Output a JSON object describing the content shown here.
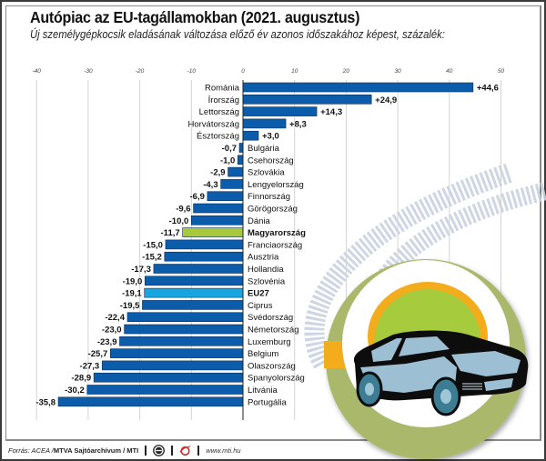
{
  "header": {
    "title": "Autópiac az EU-tagállamokban (2021. augusztus)",
    "subtitle": "Új személygépkocsik eladásának változása előző év azonos időszakához képest, százalék:"
  },
  "footer": {
    "source_prefix": "Forrás: ACEA / ",
    "source_bold": "MTVA Sajtóarchívum / MTI",
    "url": "www.mti.hu",
    "logo1_text": "MTVA"
  },
  "colors": {
    "bar": "#0b5cab",
    "bar_outline": "#0a2f5c",
    "highlight_hungary": "#a9c93c",
    "highlight_eu27": "#19a6de",
    "grid": "#d4d4d4",
    "tire_track": "#c9d2e2",
    "badge_outer": "#a9b86b",
    "badge_sun": "#a6cb3d",
    "badge_orange": "#f3ad1c",
    "car_body": "#0d0d0d",
    "car_glass": "#9dbfd3",
    "car_wheel": "#3d7d93"
  },
  "chart_data": {
    "type": "bar",
    "orientation": "horizontal",
    "title": "Autópiac az EU-tagállamokban (2021. augusztus)",
    "subtitle": "Új személygépkocsik eladásának változása előző év azonos időszakához képest, százalék:",
    "xlabel": "",
    "ylabel": "",
    "xlim": [
      -40,
      50
    ],
    "xticks": [
      -40,
      -30,
      -20,
      -10,
      0,
      10,
      20,
      30,
      40,
      50
    ],
    "grid": true,
    "categories": [
      "Románia",
      "Írország",
      "Lettország",
      "Horvátország",
      "Észtország",
      "Bulgária",
      "Csehország",
      "Szlovákia",
      "Lengyelország",
      "Finnország",
      "Görögország",
      "Dánia",
      "Magyarország",
      "Franciaország",
      "Ausztria",
      "Hollandia",
      "Szlovénia",
      "EU27",
      "Ciprus",
      "Svédország",
      "Németország",
      "Luxemburg",
      "Belgium",
      "Olaszország",
      "Spanyolország",
      "Litvánia",
      "Portugália"
    ],
    "values": [
      44.6,
      24.9,
      14.3,
      8.3,
      3.0,
      -0.7,
      -1.0,
      -2.9,
      -4.3,
      -6.9,
      -9.6,
      -10.0,
      -11.7,
      -15.0,
      -15.2,
      -17.3,
      -19.0,
      -19.1,
      -19.5,
      -22.4,
      -23.0,
      -23.9,
      -25.7,
      -27.3,
      -28.9,
      -30.2,
      -35.8
    ],
    "value_labels": [
      "+44,6",
      "+24,9",
      "+14,3",
      "+8,3",
      "+3,0",
      "-0,7",
      "-1,0",
      "-2,9",
      "-4,3",
      "-6,9",
      "-9,6",
      "-10,0",
      "-11,7",
      "-15,0",
      "-15,2",
      "-17,3",
      "-19,0",
      "-19,1",
      "-19,5",
      "-22,4",
      "-23,0",
      "-23,9",
      "-25,7",
      "-27,3",
      "-28,9",
      "-30,2",
      "-35,8"
    ],
    "highlights": {
      "Magyarország": "hungary",
      "EU27": "eu27"
    }
  }
}
